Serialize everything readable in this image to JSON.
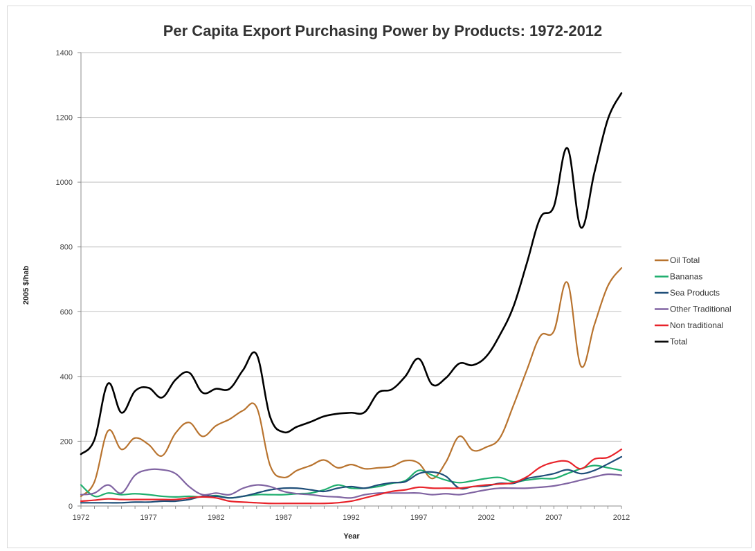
{
  "chart_data": {
    "type": "line",
    "title": "Per Capita Export Purchasing Power by Products: 1972-2012",
    "xlabel": "Year",
    "ylabel": "2005 $/hab",
    "xlim": [
      1972,
      2012
    ],
    "ylim": [
      0,
      1400
    ],
    "x_ticks": [
      1972,
      1977,
      1982,
      1987,
      1992,
      1997,
      2002,
      2007,
      2012
    ],
    "y_ticks": [
      0,
      200,
      400,
      600,
      800,
      1000,
      1200,
      1400
    ],
    "grid": true,
    "legend_position": "right",
    "x": [
      1972,
      1973,
      1974,
      1975,
      1976,
      1977,
      1978,
      1979,
      1980,
      1981,
      1982,
      1983,
      1984,
      1985,
      1986,
      1987,
      1988,
      1989,
      1990,
      1991,
      1992,
      1993,
      1994,
      1995,
      1996,
      1997,
      1998,
      1999,
      2000,
      2001,
      2002,
      2003,
      2004,
      2005,
      2006,
      2007,
      2008,
      2009,
      2010,
      2011,
      2012
    ],
    "series": [
      {
        "name": "Oil Total",
        "color": "#b8732e",
        "values": [
          30,
          75,
          232,
          175,
          210,
          190,
          155,
          225,
          258,
          215,
          248,
          268,
          295,
          305,
          125,
          88,
          110,
          125,
          142,
          118,
          128,
          115,
          118,
          122,
          140,
          132,
          85,
          135,
          215,
          172,
          182,
          210,
          310,
          420,
          525,
          540,
          690,
          432,
          560,
          680,
          735
        ]
      },
      {
        "name": "Bananas",
        "color": "#1fae6e",
        "values": [
          65,
          30,
          40,
          35,
          38,
          35,
          30,
          28,
          30,
          28,
          32,
          25,
          30,
          35,
          35,
          35,
          38,
          40,
          50,
          65,
          55,
          55,
          60,
          70,
          78,
          110,
          95,
          80,
          72,
          78,
          85,
          88,
          75,
          80,
          85,
          85,
          100,
          115,
          125,
          118,
          110
        ]
      },
      {
        "name": "Sea Products",
        "color": "#1f4e79",
        "values": [
          10,
          10,
          10,
          10,
          12,
          12,
          15,
          15,
          20,
          30,
          30,
          25,
          30,
          40,
          50,
          55,
          55,
          50,
          45,
          55,
          60,
          55,
          65,
          72,
          75,
          100,
          105,
          92,
          55,
          60,
          62,
          70,
          70,
          85,
          92,
          100,
          112,
          100,
          110,
          130,
          152
        ]
      },
      {
        "name": "Other Traditional",
        "color": "#8064a2",
        "values": [
          35,
          40,
          65,
          40,
          95,
          112,
          112,
          100,
          60,
          35,
          40,
          35,
          55,
          65,
          60,
          45,
          38,
          35,
          30,
          28,
          25,
          35,
          40,
          40,
          40,
          40,
          35,
          38,
          35,
          42,
          50,
          55,
          55,
          55,
          58,
          62,
          70,
          80,
          90,
          98,
          95
        ]
      },
      {
        "name": "Non traditional",
        "color": "#e8232a",
        "values": [
          15,
          18,
          22,
          20,
          20,
          20,
          20,
          20,
          25,
          28,
          25,
          15,
          12,
          10,
          8,
          8,
          8,
          8,
          8,
          10,
          15,
          25,
          35,
          45,
          50,
          58,
          55,
          55,
          55,
          60,
          65,
          68,
          72,
          90,
          120,
          135,
          138,
          115,
          145,
          150,
          175
        ]
      },
      {
        "name": "Total",
        "color": "#000000",
        "values": [
          160,
          205,
          378,
          288,
          355,
          365,
          335,
          390,
          412,
          350,
          362,
          362,
          420,
          468,
          275,
          228,
          245,
          260,
          277,
          285,
          288,
          290,
          350,
          360,
          400,
          455,
          375,
          395,
          440,
          435,
          462,
          528,
          615,
          750,
          890,
          925,
          1105,
          860,
          1030,
          1195,
          1275
        ]
      }
    ]
  }
}
